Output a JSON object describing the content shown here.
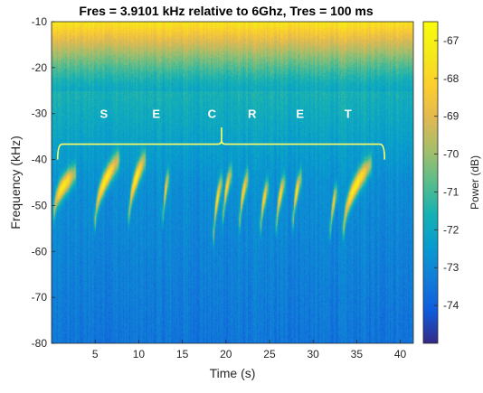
{
  "chart_data": {
    "type": "heatmap",
    "title": "Fres = 3.9101 kHz relative to 6Ghz, Tres = 100 ms",
    "xlabel": "Time (s)",
    "ylabel": "Frequency (kHz)",
    "xlim": [
      0,
      41.5
    ],
    "ylim": [
      -80,
      -10
    ],
    "x_ticks": [
      5,
      10,
      15,
      20,
      25,
      30,
      35,
      40
    ],
    "y_ticks": [
      -10,
      -20,
      -30,
      -40,
      -50,
      -60,
      -70,
      -80
    ],
    "colorbar": {
      "label": "Power (dB)",
      "range": [
        -75,
        -66.5
      ],
      "ticks": [
        -67,
        -68,
        -69,
        -70,
        -71,
        -72,
        -73,
        -74
      ],
      "colormap": "parula"
    },
    "annotation": {
      "letters": [
        "S",
        "E",
        "C",
        "R",
        "E",
        "T"
      ],
      "letter_x": [
        6,
        12,
        18.4,
        23,
        28.5,
        34
      ],
      "letter_y": -30,
      "brace": {
        "x_start": 0.7,
        "x_end": 38.2,
        "y": -40,
        "peak_x": 19.5,
        "peak_y": -33,
        "color": "#ffff66"
      }
    },
    "chirps": [
      {
        "t_start": 0.3,
        "t_end": 2.6,
        "f_start": -51,
        "f_end": -43,
        "peak_db": -67.2
      },
      {
        "t_start": 5.0,
        "t_end": 7.6,
        "f_start": -53,
        "f_end": -40,
        "peak_db": -67.0
      },
      {
        "t_start": 8.9,
        "t_end": 10.6,
        "f_start": -52,
        "f_end": -40,
        "peak_db": -67.1
      },
      {
        "t_start": 12.8,
        "t_end": 13.3,
        "f_start": -52,
        "f_end": -44,
        "peak_db": -68.0
      },
      {
        "t_start": 18.6,
        "t_end": 19.4,
        "f_start": -56,
        "f_end": -45,
        "peak_db": -67.5
      },
      {
        "t_start": 19.7,
        "t_end": 20.5,
        "f_start": -52,
        "f_end": -43,
        "peak_db": -67.6
      },
      {
        "t_start": 21.6,
        "t_end": 22.4,
        "f_start": -53,
        "f_end": -44,
        "peak_db": -67.6
      },
      {
        "t_start": 24.0,
        "t_end": 24.7,
        "f_start": -54,
        "f_end": -46,
        "peak_db": -67.8
      },
      {
        "t_start": 25.8,
        "t_end": 26.6,
        "f_start": -54,
        "f_end": -45,
        "peak_db": -67.7
      },
      {
        "t_start": 27.7,
        "t_end": 28.5,
        "f_start": -53,
        "f_end": -44,
        "peak_db": -67.6
      },
      {
        "t_start": 32.0,
        "t_end": 32.6,
        "f_start": -55,
        "f_end": -47,
        "peak_db": -68.0
      },
      {
        "t_start": 33.5,
        "t_end": 36.5,
        "f_start": -55,
        "f_end": -41,
        "peak_db": -67.0
      }
    ],
    "background": {
      "top_db": -67.5,
      "mid_db": -72.0,
      "bottom_db": -73.5
    }
  }
}
